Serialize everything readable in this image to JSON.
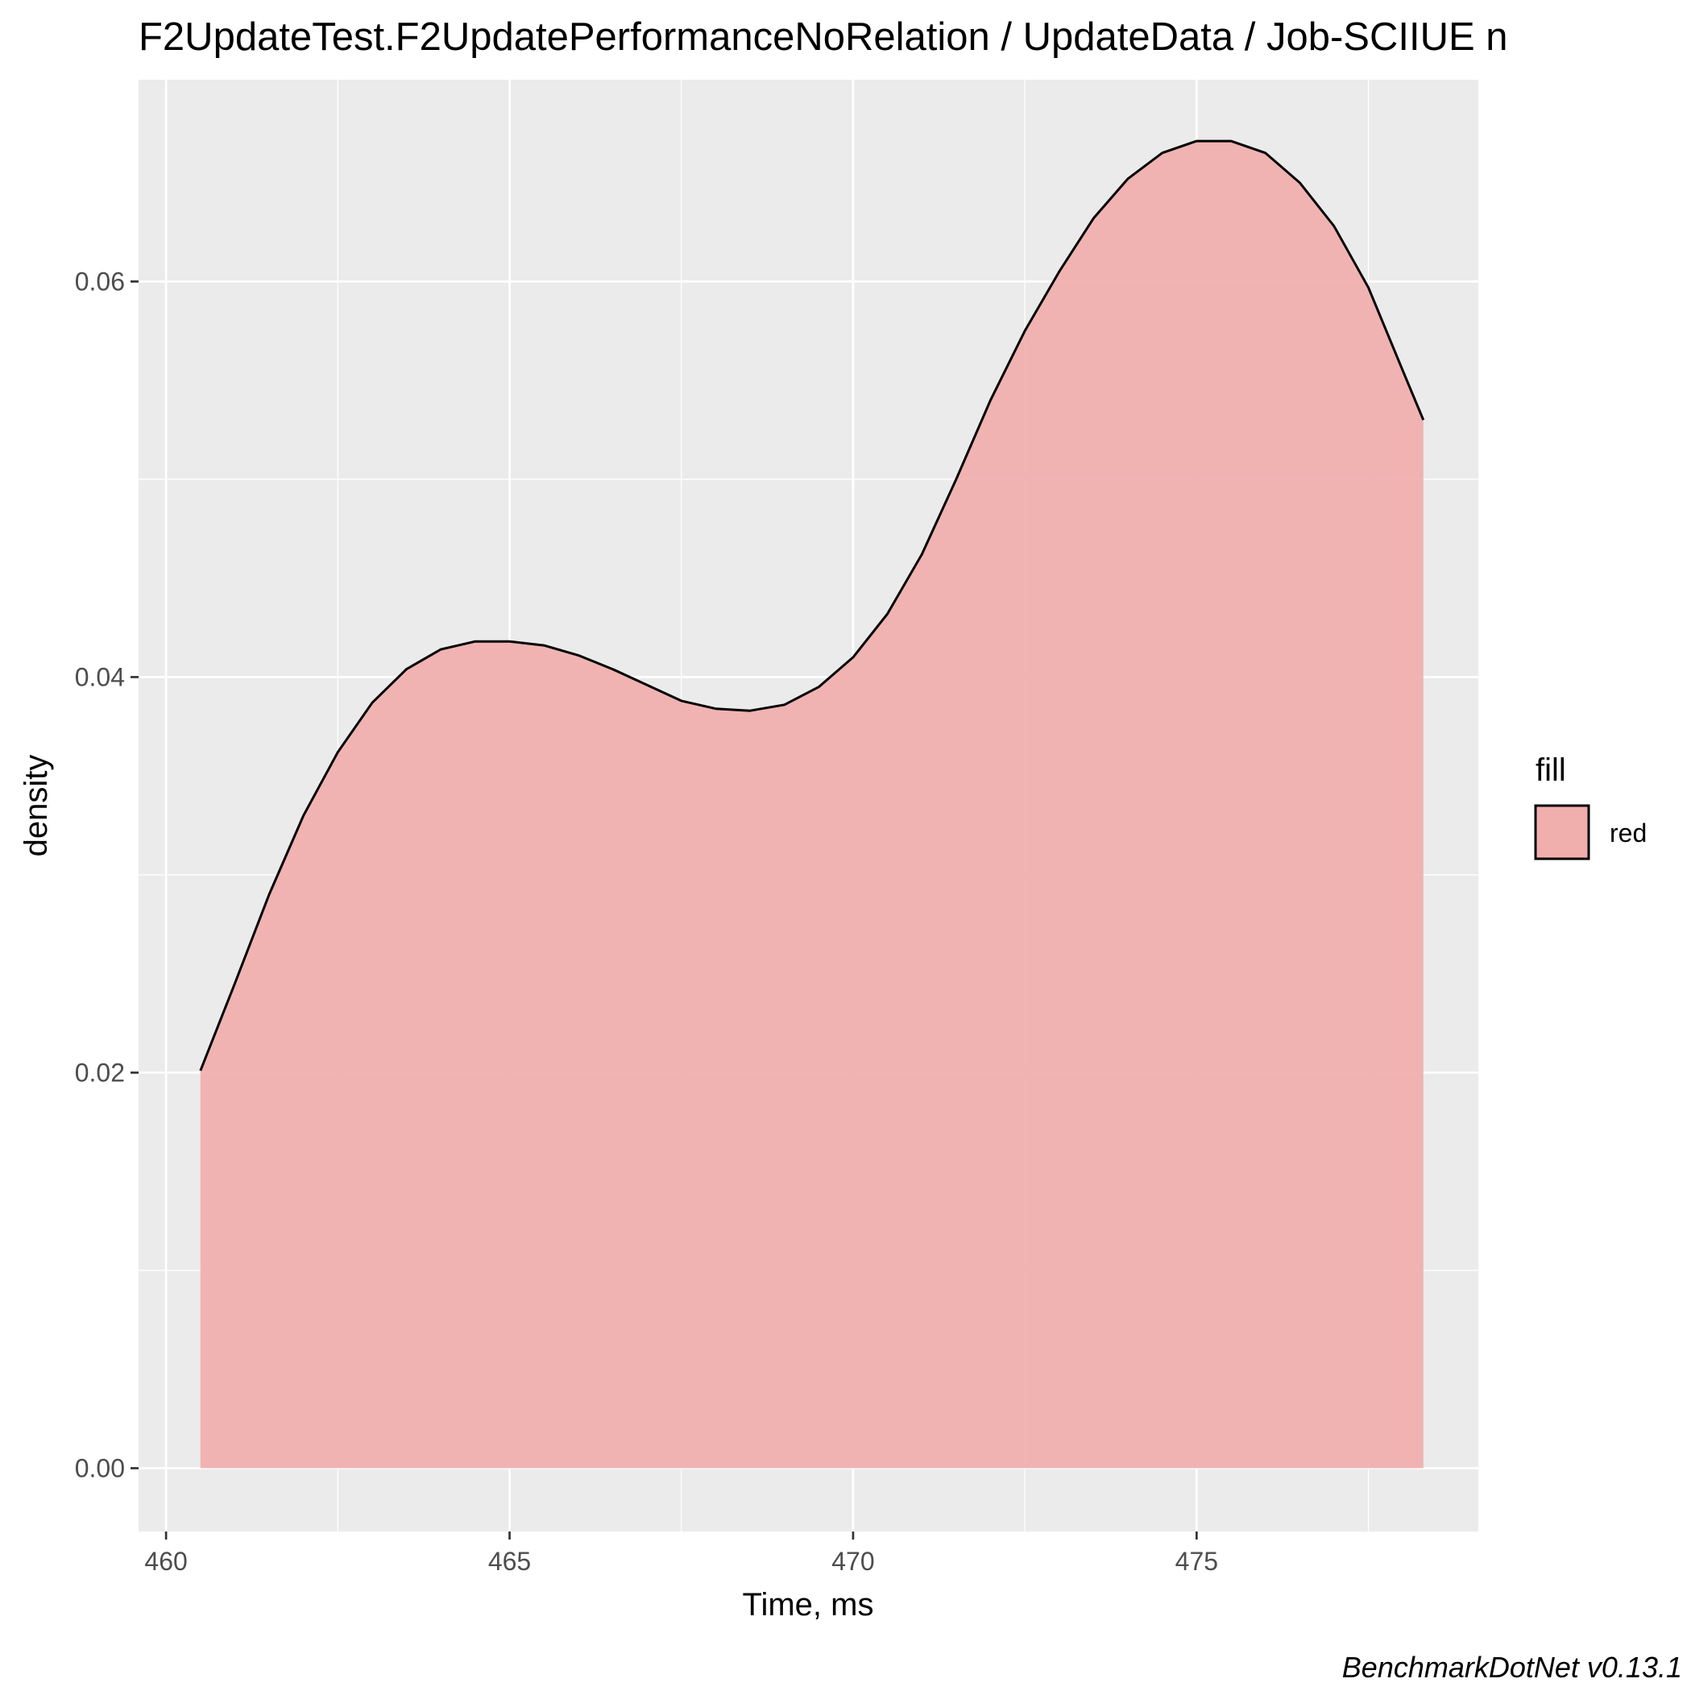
{
  "chart_data": {
    "type": "area",
    "title": "F2UpdateTest.F2UpdatePerformanceNoRelation / UpdateData / Job-SCIIUE n",
    "xlabel": "Time, ms",
    "ylabel": "density",
    "caption": "BenchmarkDotNet v0.13.1",
    "xlim": [
      459.6,
      479.1
    ],
    "ylim": [
      -0.0032,
      0.0702
    ],
    "x_ticks": [
      460,
      465,
      470,
      475
    ],
    "x_tick_labels": [
      "460",
      "465",
      "470",
      "475"
    ],
    "y_ticks": [
      0.0,
      0.02,
      0.04,
      0.06
    ],
    "y_tick_labels": [
      "0.00",
      "0.02",
      "0.04",
      "0.06"
    ],
    "grid": true,
    "legend": {
      "title": "fill",
      "position": "right",
      "entries": [
        "red"
      ]
    },
    "series": [
      {
        "name": "red",
        "fill_color": "#f0aeac",
        "line_color": "#000000",
        "x": [
          460.5,
          461.0,
          461.5,
          462.0,
          462.5,
          463.0,
          463.5,
          464.0,
          464.5,
          465.0,
          465.5,
          466.0,
          466.5,
          467.0,
          467.5,
          468.0,
          468.5,
          469.0,
          469.5,
          470.0,
          470.5,
          471.0,
          471.5,
          472.0,
          472.5,
          473.0,
          473.5,
          474.0,
          474.5,
          475.0,
          475.5,
          476.0,
          476.5,
          477.0,
          477.5,
          478.0,
          478.3
        ],
        "y": [
          0.0201,
          0.0245,
          0.029,
          0.033,
          0.0362,
          0.0387,
          0.0404,
          0.0414,
          0.0418,
          0.0418,
          0.0416,
          0.0411,
          0.0404,
          0.0396,
          0.0388,
          0.0384,
          0.0383,
          0.0386,
          0.0395,
          0.041,
          0.0432,
          0.0462,
          0.05,
          0.054,
          0.0575,
          0.0605,
          0.0632,
          0.0652,
          0.0665,
          0.0671,
          0.0671,
          0.0665,
          0.065,
          0.0628,
          0.0597,
          0.0555,
          0.053
        ]
      }
    ]
  }
}
